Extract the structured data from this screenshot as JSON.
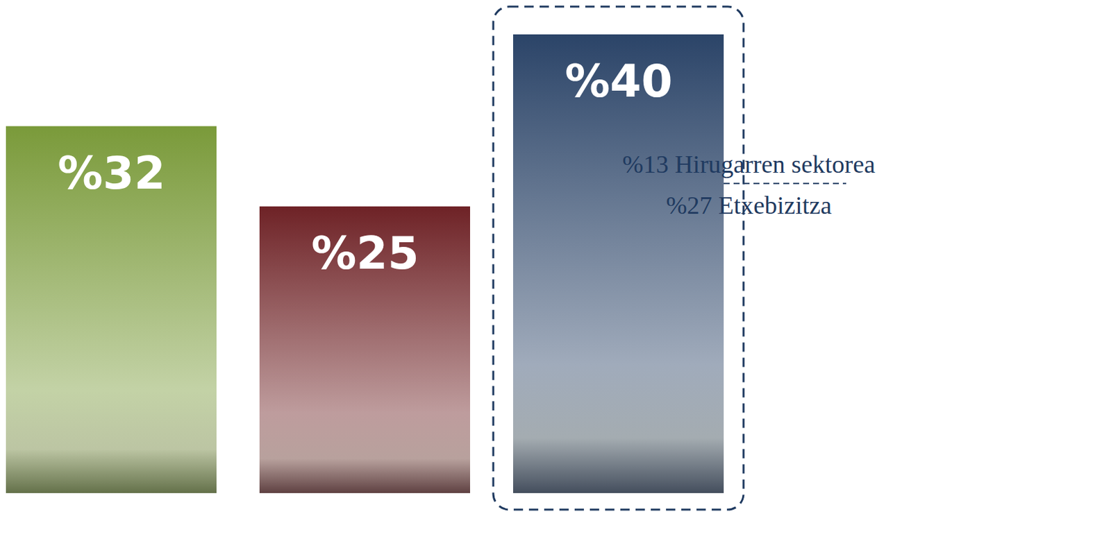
{
  "chart_data": {
    "type": "bar",
    "categories": [
      null,
      null,
      null
    ],
    "values": [
      32,
      25,
      40
    ],
    "value_labels": [
      "%32",
      "%25",
      "%40"
    ],
    "data_labels": true,
    "colors": [
      "#7a9a3a",
      "#6e2226",
      "#2b4468"
    ],
    "ylim": [
      0,
      40
    ],
    "tick_labels": false,
    "breakdown": [
      null,
      null,
      [
        {
          "label": "%13 Hirugarren sektorea",
          "value": 13
        },
        {
          "label": "%27 Etxebizitza",
          "value": 27
        }
      ]
    ]
  }
}
